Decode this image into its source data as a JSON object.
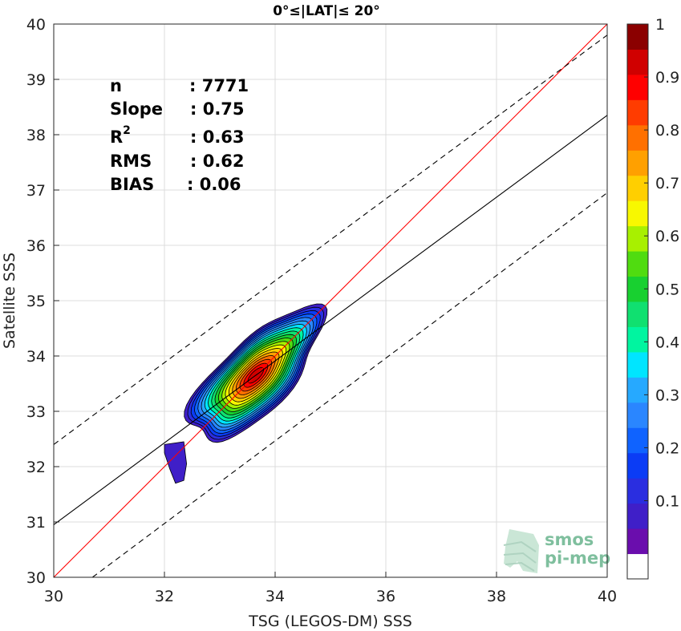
{
  "chart_data": {
    "type": "contour",
    "title": "0°≤|LAT|≤ 20°",
    "xlabel": "TSG (LEGOS-DM) SSS",
    "ylabel": "Satellite SSS",
    "xlim": [
      30,
      40
    ],
    "ylim": [
      30,
      40
    ],
    "xticks": [
      "30",
      "32",
      "34",
      "36",
      "38",
      "40"
    ],
    "yticks": [
      "30",
      "31",
      "32",
      "33",
      "34",
      "35",
      "36",
      "37",
      "38",
      "39",
      "40"
    ],
    "grid": true,
    "stats": [
      {
        "label": "n",
        "value": ": 7771"
      },
      {
        "label": "Slope",
        "value": ": 0.75"
      },
      {
        "label": "R",
        "sup": "2",
        "value": ": 0.63"
      },
      {
        "label": "RMS",
        "value": ": 0.62"
      },
      {
        "label": "BIAS",
        "value": ": 0.06"
      }
    ],
    "lines": [
      {
        "name": "one-to-one",
        "color": "#ff0000",
        "style": "solid",
        "points": [
          [
            30,
            30
          ],
          [
            40,
            40
          ]
        ]
      },
      {
        "name": "regression",
        "color": "#000000",
        "style": "solid",
        "points": [
          [
            30,
            30.95
          ],
          [
            40,
            38.35
          ]
        ]
      },
      {
        "name": "upper-bound",
        "color": "#000000",
        "style": "dashed",
        "points": [
          [
            30,
            32.4
          ],
          [
            40,
            39.8
          ]
        ]
      },
      {
        "name": "lower-bound",
        "color": "#000000",
        "style": "dashed",
        "points": [
          [
            30.7,
            30
          ],
          [
            40,
            36.95
          ]
        ]
      }
    ],
    "density_levels": [
      0.05,
      0.1,
      0.15,
      0.2,
      0.25,
      0.3,
      0.35,
      0.4,
      0.45,
      0.5,
      0.55,
      0.6,
      0.65,
      0.7,
      0.75,
      0.8,
      0.85,
      0.9,
      0.95
    ],
    "density_peak": {
      "x": 33.65,
      "y": 33.65
    },
    "colorbar": {
      "ticks": [
        "0.1",
        "0.2",
        "0.3",
        "0.4",
        "0.5",
        "0.6",
        "0.7",
        "0.8",
        "0.9",
        "1"
      ],
      "colors": [
        "#ffffff",
        "#6a0dad",
        "#3f1fc8",
        "#2a2ee0",
        "#0b3cf5",
        "#0f63ff",
        "#2a86ff",
        "#26a9ff",
        "#00e5ff",
        "#00f5a0",
        "#10e070",
        "#18d030",
        "#50dc10",
        "#a8f000",
        "#f8f800",
        "#ffcf00",
        "#ffa000",
        "#ff7000",
        "#ff3c00",
        "#ff0000",
        "#d00000",
        "#8b0000"
      ]
    },
    "logo": {
      "line1": "smos",
      "line2": "pi-mep"
    }
  }
}
